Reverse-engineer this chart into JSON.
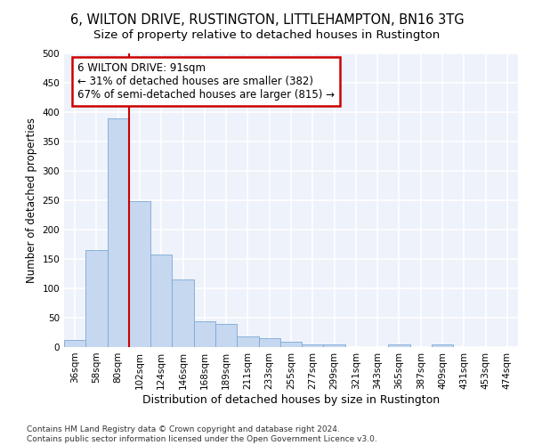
{
  "title1": "6, WILTON DRIVE, RUSTINGTON, LITTLEHAMPTON, BN16 3TG",
  "title2": "Size of property relative to detached houses in Rustington",
  "xlabel": "Distribution of detached houses by size in Rustington",
  "ylabel": "Number of detached properties",
  "footer": "Contains HM Land Registry data © Crown copyright and database right 2024.\nContains public sector information licensed under the Open Government Licence v3.0.",
  "bar_values": [
    12,
    165,
    390,
    248,
    157,
    115,
    44,
    40,
    18,
    15,
    9,
    5,
    4,
    0,
    0,
    5,
    0,
    5
  ],
  "bin_labels": [
    "36sqm",
    "58sqm",
    "80sqm",
    "102sqm",
    "124sqm",
    "146sqm",
    "168sqm",
    "189sqm",
    "211sqm",
    "233sqm",
    "255sqm",
    "277sqm",
    "299sqm",
    "321sqm",
    "343sqm",
    "365sqm",
    "387sqm",
    "409sqm",
    "431sqm",
    "453sqm",
    "474sqm"
  ],
  "bar_color": "#c5d8f0",
  "bar_edge_color": "#7da8d4",
  "property_line_bin": 2,
  "annotation_text": "6 WILTON DRIVE: 91sqm\n← 31% of detached houses are smaller (382)\n67% of semi-detached houses are larger (815) →",
  "annotation_box_color": "#ffffff",
  "annotation_box_edge": "#cc0000",
  "annotation_line_color": "#cc0000",
  "ylim": [
    0,
    500
  ],
  "yticks": [
    0,
    50,
    100,
    150,
    200,
    250,
    300,
    350,
    400,
    450,
    500
  ],
  "background_color": "#eef2fb",
  "grid_color": "#ffffff",
  "title1_fontsize": 10.5,
  "title2_fontsize": 9.5,
  "xlabel_fontsize": 9,
  "ylabel_fontsize": 8.5,
  "tick_fontsize": 7.5,
  "annotation_fontsize": 8.5,
  "footer_fontsize": 6.5
}
